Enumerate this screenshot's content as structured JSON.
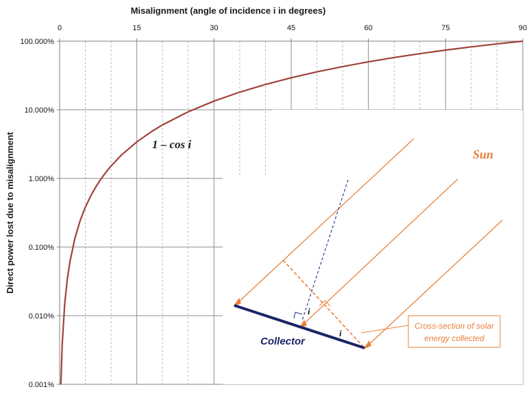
{
  "chart_data": {
    "type": "line",
    "title": "Misalignment  (angle of incidence  i  in degrees)",
    "ylabel": "Direct power lost due to misalignment",
    "xlabel": "",
    "xlim": [
      0,
      90
    ],
    "ylim": [
      0.001,
      100
    ],
    "yscale": "log",
    "x_axis_position": "top",
    "x_ticks": [
      "0",
      "15",
      "30",
      "45",
      "60",
      "75",
      "90"
    ],
    "y_ticks": [
      "0.001%",
      "0.010%",
      "0.100%",
      "1.000%",
      "10.000%",
      "100.000%"
    ],
    "grid": true,
    "series": [
      {
        "name": "1 – cos i",
        "color": "#a0413a",
        "x": [
          0.25,
          0.5,
          1,
          1.5,
          2,
          3,
          4,
          5,
          6,
          7,
          8,
          9,
          10,
          12,
          15,
          18,
          20,
          25,
          30,
          35,
          40,
          45,
          50,
          55,
          60,
          65,
          70,
          75,
          80,
          85,
          90
        ],
        "y": [
          0.00095,
          0.0038,
          0.0152,
          0.0343,
          0.0609,
          0.137,
          0.244,
          0.381,
          0.548,
          0.745,
          0.973,
          1.231,
          1.519,
          2.185,
          3.407,
          4.894,
          6.031,
          9.369,
          13.397,
          18.085,
          23.396,
          29.289,
          35.721,
          42.642,
          50.0,
          57.738,
          65.798,
          74.118,
          82.635,
          91.284,
          100.0
        ]
      }
    ],
    "annotations": {
      "curve_label": "1 – cos i",
      "sun_label": "Sun",
      "collector_label": "Collector",
      "angle_label": "i",
      "callout_line1": "Cross-section of solar",
      "callout_line2": "energy collected"
    }
  },
  "colors": {
    "curve": "#a0413a",
    "sun_rays": "#e9803a",
    "collector": "#1c2466",
    "normal_line": "#1c2e8a",
    "grid_major": "#8c8c8c",
    "grid_minor": "#a6a6a6"
  }
}
